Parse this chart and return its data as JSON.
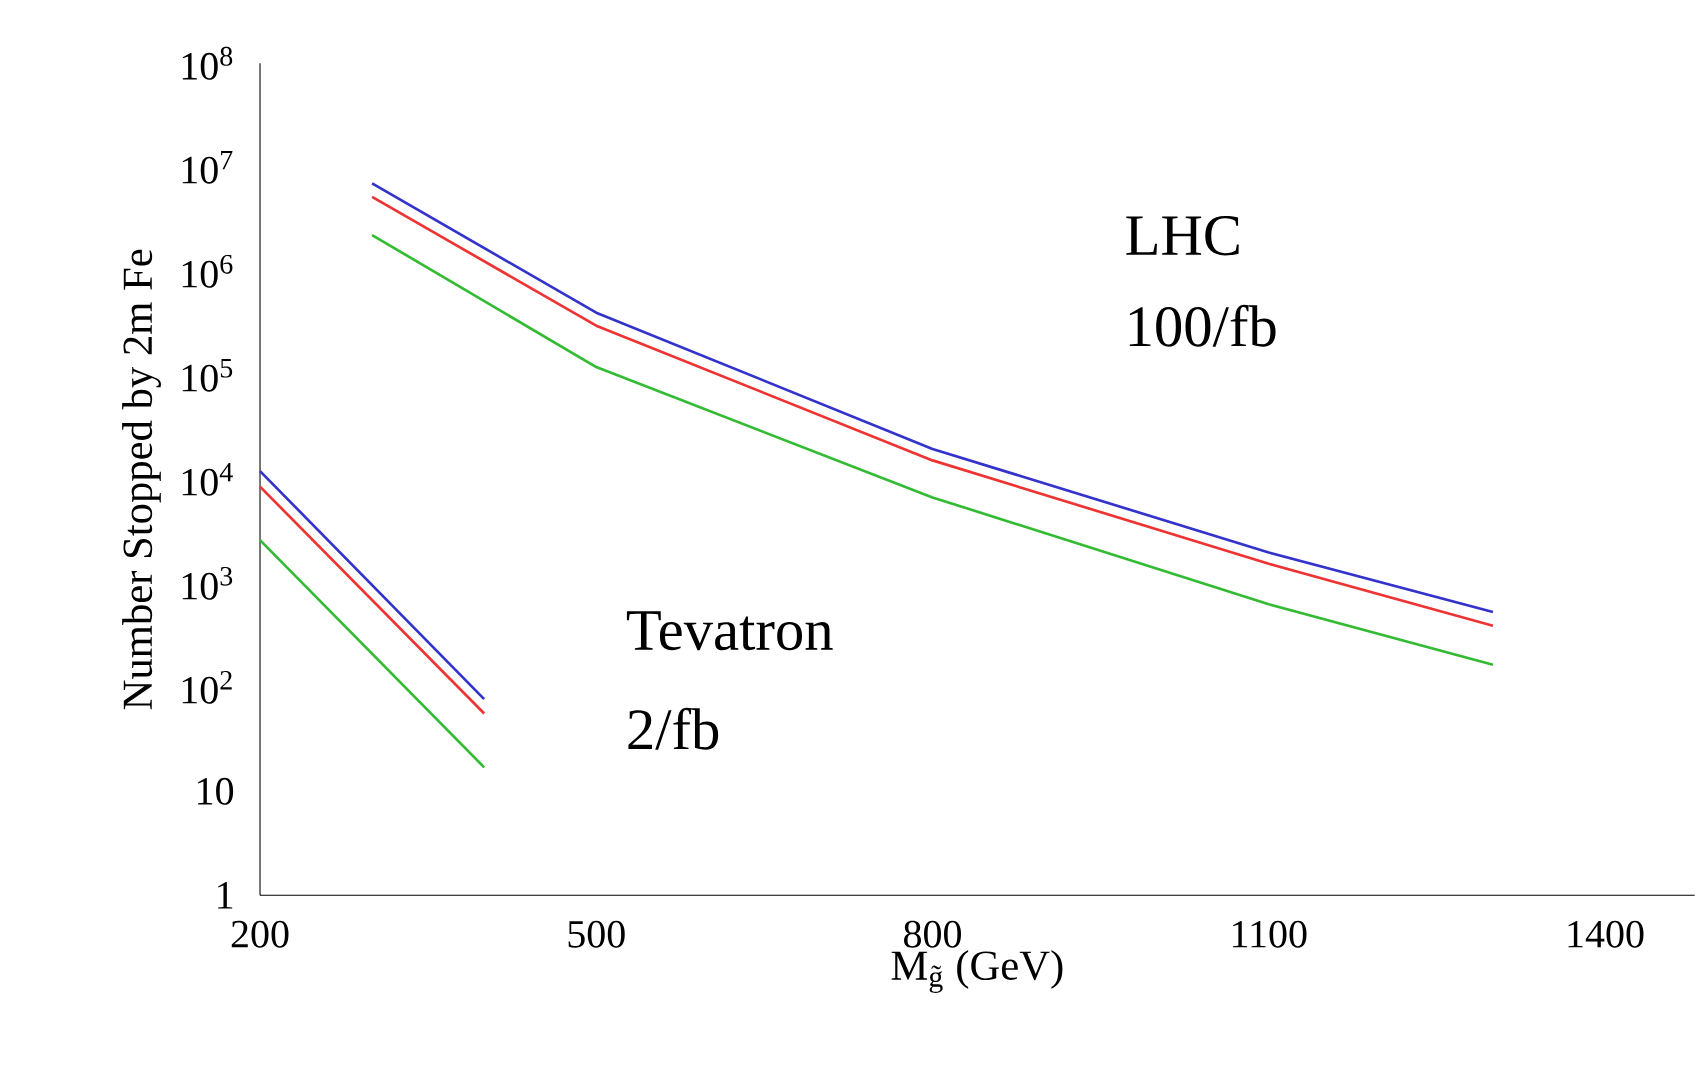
{
  "chart_data": {
    "type": "line",
    "log": "y",
    "xlabel": "M$_{g̃}$   (GeV)",
    "ylabel": "Number Stopped by 2m Fe",
    "xlim": [
      200,
      1480
    ],
    "xticks": [
      200,
      500,
      800,
      1100,
      1400
    ],
    "ylim": [
      1,
      100000000
    ],
    "yticks": [
      1,
      10,
      {
        "value": 100,
        "label": "10$^{2}$"
      },
      {
        "value": 1000,
        "label": "10$^{3}$"
      },
      {
        "value": 10000,
        "label": "10$^{4}$"
      },
      {
        "value": 100000,
        "label": "10$^{5}$"
      },
      {
        "value": 1000000,
        "label": "10$^{6}$"
      },
      {
        "value": 10000000,
        "label": "10$^{7}$"
      },
      {
        "value": 100000000,
        "label": "10$^{8}$"
      }
    ],
    "annotations": [
      "LHC",
      "100/fb",
      "Tevatron",
      "2/fb"
    ],
    "series": [
      {
        "color": "#3333cc",
        "x": [
          200,
          400
        ],
        "values": [
          12000,
          77
        ]
      },
      {
        "color": "#ee3333",
        "x": [
          200,
          400
        ],
        "values": [
          8500,
          56
        ]
      },
      {
        "color": "#33bb33",
        "x": [
          200,
          400
        ],
        "values": [
          2600,
          17
        ]
      },
      {
        "color": "#3333cc",
        "x": [
          300,
          500,
          800,
          1100,
          1300
        ],
        "values": [
          7000000,
          400000,
          19600,
          1980,
          530
        ]
      },
      {
        "color": "#ee3333",
        "x": [
          300,
          500,
          800,
          1100,
          1300
        ],
        "values": [
          5200000,
          300000,
          15200,
          1540,
          390
        ]
      },
      {
        "color": "#33bb33",
        "x": [
          300,
          500,
          800,
          1100,
          1300
        ],
        "values": [
          2230000,
          120000,
          6700,
          630,
          165
        ]
      }
    ]
  }
}
